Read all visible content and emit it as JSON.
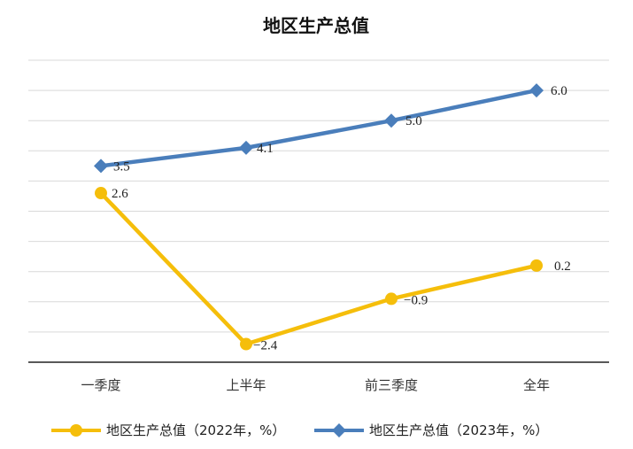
{
  "chart_data": {
    "type": "line",
    "title": "地区生产总值",
    "categories": [
      "一季度",
      "上半年",
      "前三季度",
      "全年"
    ],
    "ylim": [
      -3,
      7
    ],
    "grid": true,
    "legend_position": "bottom",
    "series": [
      {
        "name": "地区生产总值（2022年，%）",
        "values": [
          2.6,
          -2.4,
          -0.9,
          0.2
        ],
        "labels": [
          "2.6",
          "−2.4",
          "−0.9",
          "0.2"
        ],
        "color": "#F5BE0B",
        "marker": "circle"
      },
      {
        "name": "地区生产总值（2023年，%）",
        "values": [
          3.5,
          4.1,
          5.0,
          6.0
        ],
        "labels": [
          "3.5",
          "4.1",
          "5.0",
          "6.0"
        ],
        "color": "#4A7EBB",
        "marker": "diamond"
      }
    ]
  }
}
